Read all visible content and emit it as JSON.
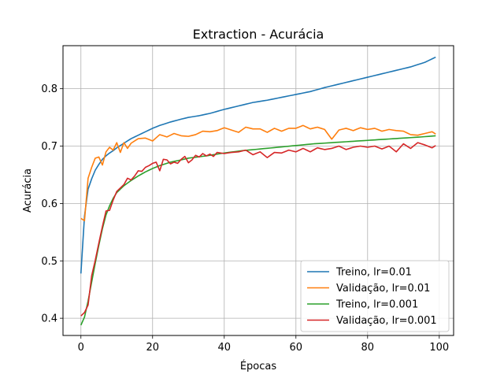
{
  "chart_data": {
    "type": "line",
    "title": "Extraction - Acurácia",
    "xlabel": "Épocas",
    "ylabel": "Acurácia",
    "xlim": [
      -5,
      104
    ],
    "ylim": [
      0.37,
      0.875
    ],
    "xticks": [
      0,
      20,
      40,
      60,
      80,
      100
    ],
    "yticks": [
      0.4,
      0.5,
      0.6,
      0.7,
      0.8
    ],
    "grid": true,
    "legend_position": "lower-right",
    "series": [
      {
        "name": "Treino, lr=0.01",
        "color": "#1f77b4",
        "keypoints": [
          [
            0,
            0.478
          ],
          [
            1,
            0.578
          ],
          [
            2,
            0.625
          ],
          [
            3,
            0.643
          ],
          [
            4,
            0.658
          ],
          [
            5,
            0.668
          ],
          [
            6,
            0.677
          ],
          [
            7,
            0.683
          ],
          [
            8,
            0.688
          ],
          [
            9,
            0.692
          ],
          [
            10,
            0.697
          ],
          [
            12,
            0.705
          ],
          [
            14,
            0.713
          ],
          [
            16,
            0.719
          ],
          [
            18,
            0.725
          ],
          [
            20,
            0.731
          ],
          [
            22,
            0.736
          ],
          [
            25,
            0.742
          ],
          [
            28,
            0.747
          ],
          [
            30,
            0.75
          ],
          [
            33,
            0.753
          ],
          [
            36,
            0.757
          ],
          [
            40,
            0.764
          ],
          [
            44,
            0.77
          ],
          [
            48,
            0.776
          ],
          [
            52,
            0.78
          ],
          [
            56,
            0.785
          ],
          [
            60,
            0.79
          ],
          [
            64,
            0.795
          ],
          [
            68,
            0.802
          ],
          [
            72,
            0.808
          ],
          [
            76,
            0.814
          ],
          [
            80,
            0.82
          ],
          [
            84,
            0.826
          ],
          [
            88,
            0.832
          ],
          [
            92,
            0.838
          ],
          [
            96,
            0.846
          ],
          [
            99,
            0.855
          ]
        ]
      },
      {
        "name": "Validação, lr=0.01",
        "color": "#ff7f0e",
        "keypoints": [
          [
            0,
            0.574
          ],
          [
            1,
            0.57
          ],
          [
            2,
            0.644
          ],
          [
            3,
            0.663
          ],
          [
            4,
            0.679
          ],
          [
            5,
            0.681
          ],
          [
            6,
            0.667
          ],
          [
            7,
            0.69
          ],
          [
            8,
            0.698
          ],
          [
            9,
            0.693
          ],
          [
            10,
            0.706
          ],
          [
            11,
            0.689
          ],
          [
            12,
            0.706
          ],
          [
            13,
            0.696
          ],
          [
            14,
            0.705
          ],
          [
            16,
            0.713
          ],
          [
            18,
            0.714
          ],
          [
            20,
            0.709
          ],
          [
            22,
            0.72
          ],
          [
            24,
            0.716
          ],
          [
            26,
            0.722
          ],
          [
            28,
            0.718
          ],
          [
            30,
            0.717
          ],
          [
            32,
            0.72
          ],
          [
            34,
            0.726
          ],
          [
            36,
            0.725
          ],
          [
            38,
            0.727
          ],
          [
            40,
            0.732
          ],
          [
            42,
            0.728
          ],
          [
            44,
            0.724
          ],
          [
            46,
            0.733
          ],
          [
            48,
            0.73
          ],
          [
            50,
            0.73
          ],
          [
            52,
            0.724
          ],
          [
            54,
            0.731
          ],
          [
            56,
            0.726
          ],
          [
            58,
            0.731
          ],
          [
            60,
            0.731
          ],
          [
            62,
            0.736
          ],
          [
            64,
            0.73
          ],
          [
            66,
            0.733
          ],
          [
            68,
            0.729
          ],
          [
            70,
            0.712
          ],
          [
            72,
            0.728
          ],
          [
            74,
            0.731
          ],
          [
            76,
            0.727
          ],
          [
            78,
            0.732
          ],
          [
            80,
            0.729
          ],
          [
            82,
            0.731
          ],
          [
            84,
            0.726
          ],
          [
            86,
            0.729
          ],
          [
            88,
            0.727
          ],
          [
            90,
            0.726
          ],
          [
            92,
            0.72
          ],
          [
            94,
            0.719
          ],
          [
            96,
            0.722
          ],
          [
            98,
            0.725
          ],
          [
            99,
            0.721
          ]
        ]
      },
      {
        "name": "Treino, lr=0.001",
        "color": "#2ca02c",
        "keypoints": [
          [
            0,
            0.388
          ],
          [
            1,
            0.402
          ],
          [
            2,
            0.43
          ],
          [
            3,
            0.463
          ],
          [
            4,
            0.496
          ],
          [
            5,
            0.527
          ],
          [
            6,
            0.556
          ],
          [
            7,
            0.58
          ],
          [
            8,
            0.596
          ],
          [
            9,
            0.609
          ],
          [
            10,
            0.619
          ],
          [
            12,
            0.631
          ],
          [
            14,
            0.64
          ],
          [
            16,
            0.648
          ],
          [
            18,
            0.655
          ],
          [
            20,
            0.661
          ],
          [
            22,
            0.666
          ],
          [
            25,
            0.672
          ],
          [
            28,
            0.676
          ],
          [
            30,
            0.679
          ],
          [
            35,
            0.683
          ],
          [
            40,
            0.688
          ],
          [
            45,
            0.692
          ],
          [
            50,
            0.695
          ],
          [
            55,
            0.698
          ],
          [
            60,
            0.701
          ],
          [
            65,
            0.704
          ],
          [
            70,
            0.706
          ],
          [
            75,
            0.708
          ],
          [
            80,
            0.71
          ],
          [
            85,
            0.712
          ],
          [
            90,
            0.714
          ],
          [
            95,
            0.716
          ],
          [
            99,
            0.718
          ]
        ]
      },
      {
        "name": "Validação, lr=0.001",
        "color": "#d62728",
        "keypoints": [
          [
            0,
            0.404
          ],
          [
            1,
            0.41
          ],
          [
            2,
            0.423
          ],
          [
            3,
            0.474
          ],
          [
            4,
            0.501
          ],
          [
            5,
            0.531
          ],
          [
            6,
            0.56
          ],
          [
            7,
            0.587
          ],
          [
            8,
            0.588
          ],
          [
            9,
            0.606
          ],
          [
            10,
            0.621
          ],
          [
            11,
            0.627
          ],
          [
            12,
            0.633
          ],
          [
            13,
            0.644
          ],
          [
            14,
            0.641
          ],
          [
            15,
            0.648
          ],
          [
            16,
            0.657
          ],
          [
            17,
            0.656
          ],
          [
            18,
            0.663
          ],
          [
            19,
            0.666
          ],
          [
            20,
            0.67
          ],
          [
            21,
            0.672
          ],
          [
            22,
            0.657
          ],
          [
            23,
            0.677
          ],
          [
            24,
            0.676
          ],
          [
            25,
            0.669
          ],
          [
            26,
            0.672
          ],
          [
            27,
            0.67
          ],
          [
            28,
            0.677
          ],
          [
            29,
            0.682
          ],
          [
            30,
            0.671
          ],
          [
            31,
            0.676
          ],
          [
            32,
            0.684
          ],
          [
            33,
            0.681
          ],
          [
            34,
            0.687
          ],
          [
            35,
            0.683
          ],
          [
            36,
            0.686
          ],
          [
            37,
            0.682
          ],
          [
            38,
            0.689
          ],
          [
            40,
            0.687
          ],
          [
            42,
            0.689
          ],
          [
            44,
            0.69
          ],
          [
            46,
            0.693
          ],
          [
            48,
            0.685
          ],
          [
            50,
            0.69
          ],
          [
            52,
            0.68
          ],
          [
            54,
            0.689
          ],
          [
            56,
            0.688
          ],
          [
            58,
            0.693
          ],
          [
            60,
            0.69
          ],
          [
            62,
            0.696
          ],
          [
            64,
            0.69
          ],
          [
            66,
            0.697
          ],
          [
            68,
            0.694
          ],
          [
            70,
            0.696
          ],
          [
            72,
            0.7
          ],
          [
            74,
            0.694
          ],
          [
            76,
            0.698
          ],
          [
            78,
            0.7
          ],
          [
            80,
            0.698
          ],
          [
            82,
            0.7
          ],
          [
            84,
            0.695
          ],
          [
            86,
            0.7
          ],
          [
            88,
            0.69
          ],
          [
            90,
            0.704
          ],
          [
            92,
            0.696
          ],
          [
            94,
            0.706
          ],
          [
            96,
            0.702
          ],
          [
            98,
            0.697
          ],
          [
            99,
            0.701
          ]
        ]
      }
    ]
  }
}
